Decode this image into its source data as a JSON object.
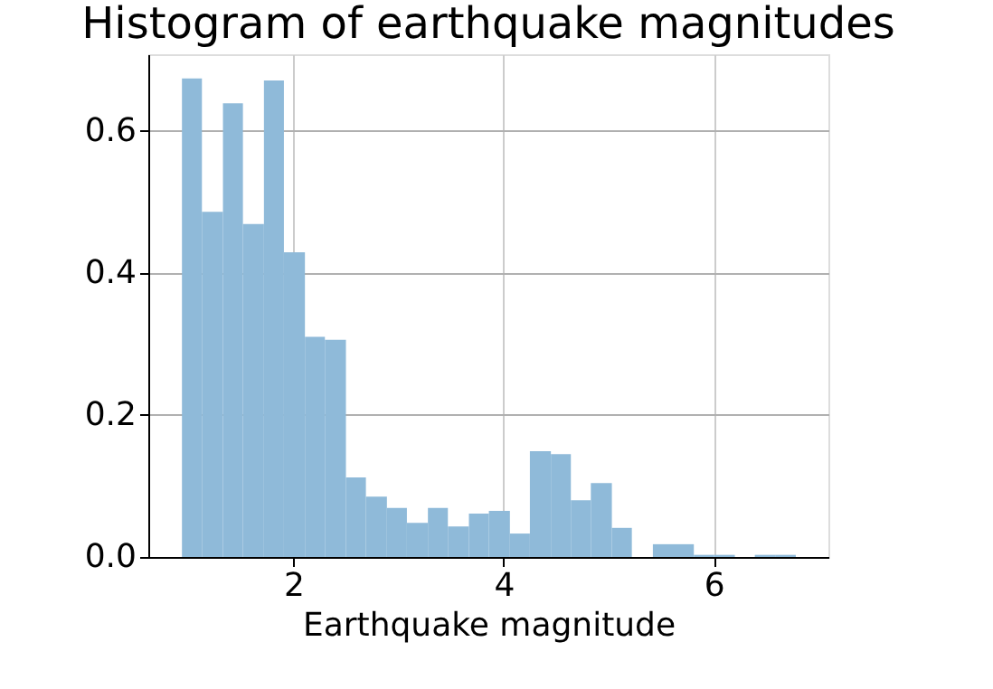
{
  "chart_data": {
    "type": "histogram",
    "title": "Histogram of earthquake magnitudes",
    "xlabel": "Earthquake magnitude",
    "bins": [
      0.94,
      1.13,
      1.33,
      1.52,
      1.72,
      1.91,
      2.11,
      2.3,
      2.5,
      2.69,
      2.89,
      3.08,
      3.28,
      3.47,
      3.67,
      3.86,
      4.06,
      4.25,
      4.45,
      4.64,
      4.83,
      5.03,
      5.22,
      5.42,
      5.61,
      5.81,
      6.0,
      6.2,
      6.39,
      6.59,
      6.78
    ],
    "values": [
      0.674,
      0.486,
      0.639,
      0.469,
      0.671,
      0.429,
      0.31,
      0.306,
      0.112,
      0.085,
      0.069,
      0.048,
      0.069,
      0.043,
      0.061,
      0.065,
      0.033,
      0.149,
      0.145,
      0.08,
      0.104,
      0.041,
      0,
      0.018,
      0.018,
      0.003,
      0.003,
      0,
      0.003,
      0.003
    ],
    "color": "#8fbad9",
    "xlim": [
      0.62,
      7.09
    ],
    "ylim": [
      0,
      0.708
    ],
    "xticks": [
      2,
      4,
      6
    ],
    "yticks": [
      {
        "value": 0,
        "label": "0.0"
      },
      {
        "value": 0.2,
        "label": "0.2"
      },
      {
        "value": 0.4,
        "label": "0.4"
      },
      {
        "value": 0.6,
        "label": "0.6"
      }
    ],
    "grid": true
  }
}
